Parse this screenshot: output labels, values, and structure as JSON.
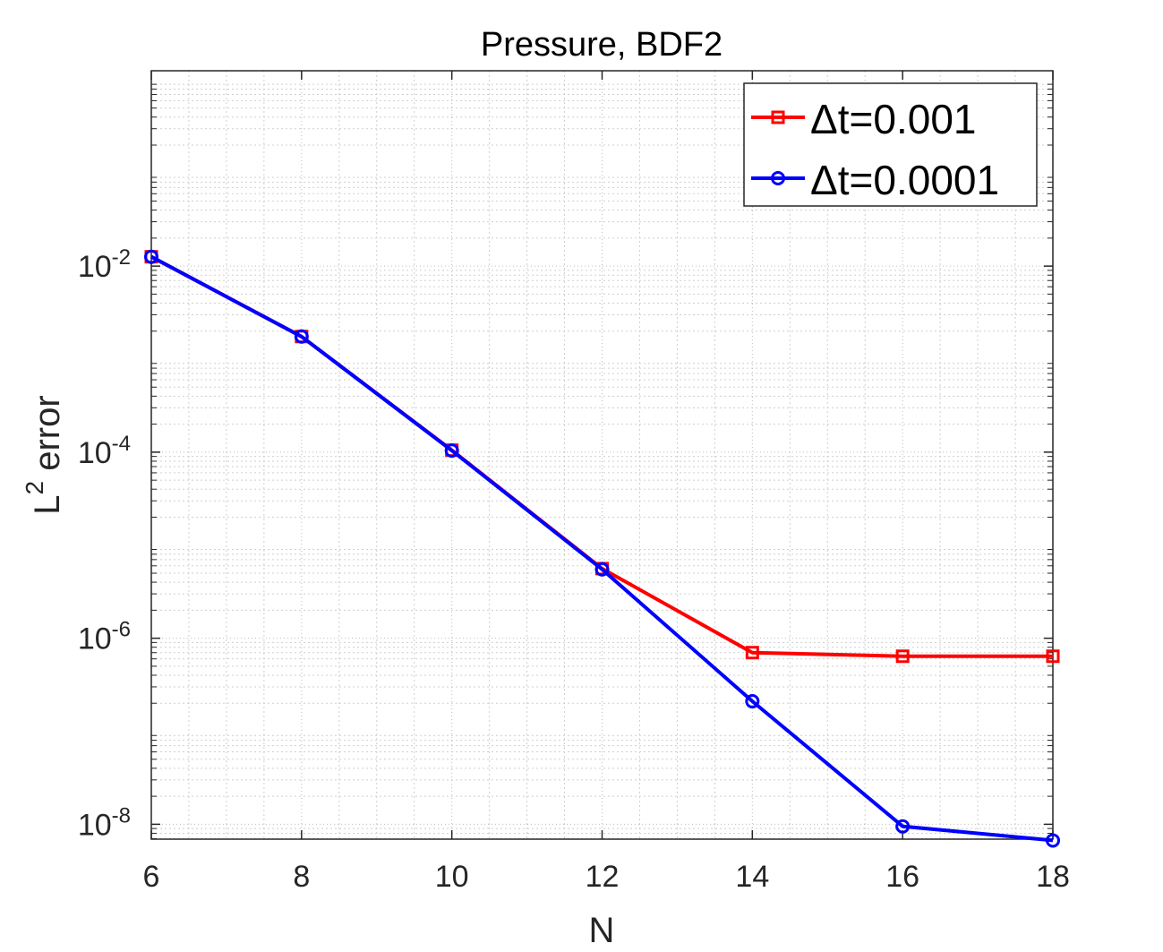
{
  "chart_data": {
    "type": "line",
    "title": "Pressure, BDF2",
    "xlabel": "N",
    "ylabel": "L",
    "ylabel_superscript": "2",
    "ylabel_suffix": " error",
    "yscale": "log",
    "xlim": [
      6,
      18
    ],
    "ylim_log10": [
      -8.16,
      0.1
    ],
    "x": [
      6,
      8,
      10,
      12,
      14,
      16,
      18
    ],
    "xticks": [
      "6",
      "8",
      "10",
      "12",
      "14",
      "16",
      "18"
    ],
    "yticks": [
      {
        "exp": -2,
        "base": "10",
        "sup": "-2"
      },
      {
        "exp": -4,
        "base": "10",
        "sup": "-4"
      },
      {
        "exp": -6,
        "base": "10",
        "sup": "-6"
      },
      {
        "exp": -8,
        "base": "10",
        "sup": "-8"
      }
    ],
    "grid": true,
    "legend_position": "top-right",
    "series": [
      {
        "name": "Δt=0.001",
        "color": "#ff0000",
        "marker": "square",
        "values": [
          0.0126,
          0.00175,
          0.000105,
          5.6e-06,
          7e-07,
          6.4e-07,
          6.4e-07
        ]
      },
      {
        "name": "Δt=0.0001",
        "color": "#0000ff",
        "marker": "circle",
        "values": [
          0.0126,
          0.00175,
          0.000104,
          5.5e-06,
          2.1e-07,
          9.5e-09,
          6.7e-09
        ]
      }
    ]
  }
}
